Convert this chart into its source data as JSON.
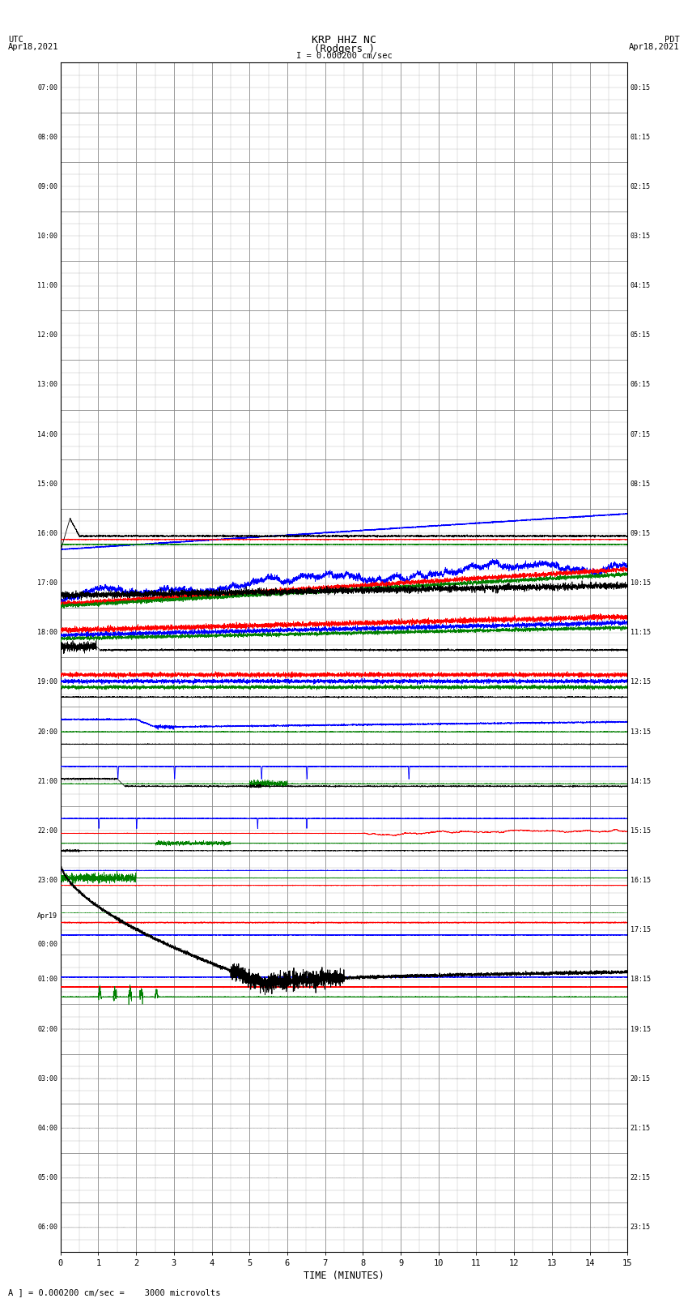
{
  "title_line1": "KRP HHZ NC",
  "title_line2": "(Rodgers )",
  "title_scale": "I = 0.000200 cm/sec",
  "utc_label": "UTC",
  "utc_date": "Apr18,2021",
  "pdt_label": "PDT",
  "pdt_date": "Apr18,2021",
  "xlabel": "TIME (MINUTES)",
  "footer": "A ] = 0.000200 cm/sec =    3000 microvolts",
  "xlim": [
    0,
    15
  ],
  "xticks": [
    0,
    1,
    2,
    3,
    4,
    5,
    6,
    7,
    8,
    9,
    10,
    11,
    12,
    13,
    14,
    15
  ],
  "utc_times": [
    "07:00",
    "08:00",
    "09:00",
    "10:00",
    "11:00",
    "12:00",
    "13:00",
    "14:00",
    "15:00",
    "16:00",
    "17:00",
    "18:00",
    "19:00",
    "20:00",
    "21:00",
    "22:00",
    "23:00",
    "Apr19\n00:00",
    "01:00",
    "02:00",
    "03:00",
    "04:00",
    "05:00",
    "06:00"
  ],
  "pdt_times": [
    "00:15",
    "01:15",
    "02:15",
    "03:15",
    "04:15",
    "05:15",
    "06:15",
    "07:15",
    "08:15",
    "09:15",
    "10:15",
    "11:15",
    "12:15",
    "13:15",
    "14:15",
    "15:15",
    "16:15",
    "17:15",
    "18:15",
    "19:15",
    "20:15",
    "21:15",
    "22:15",
    "23:15"
  ],
  "n_rows": 24,
  "bg_color": "#ffffff",
  "grid_color": "#888888",
  "subgrid_color": "#bbbbbb"
}
